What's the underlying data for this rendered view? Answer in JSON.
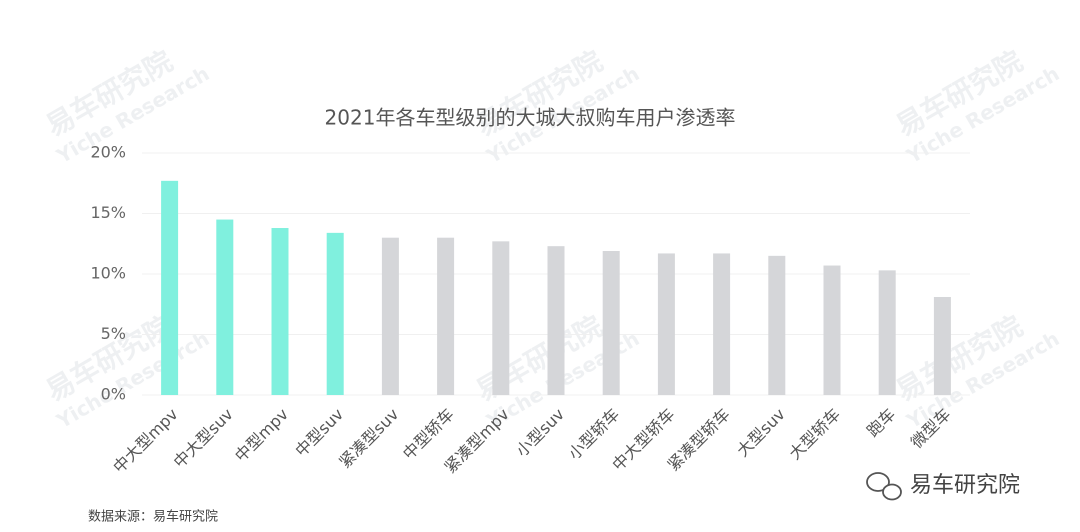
{
  "chart_data": {
    "type": "bar",
    "title": "2021年各车型级别的大城大叔购车用户渗透率",
    "categories": [
      "中大型mpv",
      "中大型suv",
      "中型mpv",
      "中型suv",
      "紧凑型suv",
      "中型轿车",
      "紧凑型mpv",
      "小型suv",
      "小型轿车",
      "中大型轿车",
      "紧凑型轿车",
      "大型suv",
      "大型轿车",
      "跑车",
      "微型车"
    ],
    "values": [
      17.7,
      14.5,
      13.8,
      13.4,
      13.0,
      13.0,
      12.7,
      12.3,
      11.9,
      11.7,
      11.7,
      11.5,
      10.7,
      10.3,
      8.1
    ],
    "colors": [
      "#80f0de",
      "#80f0de",
      "#80f0de",
      "#80f0de",
      "#d5d6d9",
      "#d5d6d9",
      "#d5d6d9",
      "#d5d6d9",
      "#d5d6d9",
      "#d5d6d9",
      "#d5d6d9",
      "#d5d6d9",
      "#d5d6d9",
      "#d5d6d9",
      "#d5d6d9"
    ],
    "ylim": [
      0,
      20
    ],
    "yticks": [
      {
        "value": 0,
        "label": "0%"
      },
      {
        "value": 5,
        "label": "5%"
      },
      {
        "value": 10,
        "label": "10%"
      },
      {
        "value": 15,
        "label": "15%"
      },
      {
        "value": 20,
        "label": "20%"
      }
    ],
    "grid": true
  },
  "watermark": {
    "title": "易车研究院",
    "subtitle": "Yiche Research"
  },
  "source": "数据来源：易车研究院",
  "logo": "易车研究院"
}
